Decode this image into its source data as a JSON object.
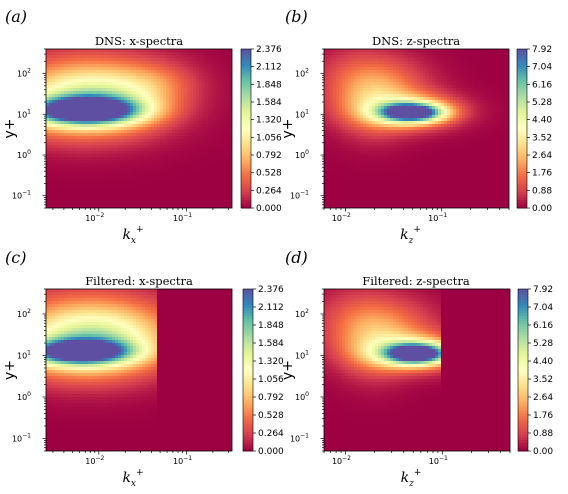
{
  "chart_data": [
    {
      "type": "heatmap",
      "panel_label": "(a)",
      "title": "DNS: x-spectra",
      "xlabel": "k_x^+",
      "xlabel_main": "k",
      "xlabel_sub": "x",
      "xlabel_sup": "+",
      "ylabel": "y+",
      "x_scale": "log",
      "y_scale": "log",
      "xlim": [
        0.0025,
        0.33
      ],
      "ylim": [
        0.05,
        400
      ],
      "x_ticks": [
        {
          "value": 0.01,
          "base": "10",
          "exp": "−2"
        },
        {
          "value": 0.1,
          "base": "10",
          "exp": "−1"
        }
      ],
      "y_ticks": [
        {
          "value": 0.1,
          "base": "10",
          "exp": "−1"
        },
        {
          "value": 1,
          "base": "10",
          "exp": "0"
        },
        {
          "value": 10,
          "base": "10",
          "exp": "1"
        },
        {
          "value": 100,
          "base": "10",
          "exp": "2"
        }
      ],
      "colorbar": {
        "min": 0,
        "max": 2.376,
        "ticks": [
          "0.000",
          "0.264",
          "0.528",
          "0.792",
          "1.056",
          "1.320",
          "1.584",
          "1.848",
          "2.112",
          "2.376"
        ]
      },
      "peak": {
        "x": 0.0065,
        "y": 12,
        "value": 2.376
      },
      "blobs": [
        {
          "x": 0.007,
          "y": 12,
          "sx": 0.42,
          "sy": 0.22,
          "value": 2.3
        },
        {
          "x": 0.006,
          "y": 18,
          "sx": 0.55,
          "sy": 0.55,
          "value": 0.95
        },
        {
          "x": 0.007,
          "y": 40,
          "sx": 0.65,
          "sy": 0.7,
          "value": 0.55
        },
        {
          "x": 0.02,
          "y": 25,
          "sx": 0.4,
          "sy": 0.5,
          "value": 0.35
        },
        {
          "x": 0.05,
          "y": 60,
          "sx": 0.3,
          "sy": 0.35,
          "value": 0.2
        }
      ]
    },
    {
      "type": "heatmap",
      "panel_label": "(b)",
      "title": "DNS: z-spectra",
      "xlabel": "k_z^+",
      "xlabel_main": "k",
      "xlabel_sub": "z",
      "xlabel_sup": "+",
      "ylabel": "y+",
      "x_scale": "log",
      "y_scale": "log",
      "xlim": [
        0.006,
        0.5
      ],
      "ylim": [
        0.05,
        400
      ],
      "x_ticks": [
        {
          "value": 0.01,
          "base": "10",
          "exp": "−2"
        },
        {
          "value": 0.1,
          "base": "10",
          "exp": "−1"
        }
      ],
      "y_ticks": [
        {
          "value": 0.1,
          "base": "10",
          "exp": "−1"
        },
        {
          "value": 1,
          "base": "10",
          "exp": "0"
        },
        {
          "value": 10,
          "base": "10",
          "exp": "1"
        },
        {
          "value": 100,
          "base": "10",
          "exp": "2"
        }
      ],
      "colorbar": {
        "min": 0,
        "max": 7.92,
        "ticks": [
          "0.00",
          "0.88",
          "1.76",
          "2.64",
          "3.52",
          "4.40",
          "5.28",
          "6.16",
          "7.04",
          "7.92"
        ]
      },
      "peak": {
        "x": 0.055,
        "y": 11,
        "value": 7.92
      },
      "blobs": [
        {
          "x": 0.05,
          "y": 11,
          "sx": 0.22,
          "sy": 0.16,
          "value": 7.6
        },
        {
          "x": 0.045,
          "y": 12,
          "sx": 0.35,
          "sy": 0.3,
          "value": 3.0
        },
        {
          "x": 0.02,
          "y": 20,
          "sx": 0.25,
          "sy": 0.6,
          "value": 1.4
        },
        {
          "x": 0.012,
          "y": 60,
          "sx": 0.3,
          "sy": 0.6,
          "value": 1.1
        },
        {
          "x": 0.035,
          "y": 50,
          "sx": 0.3,
          "sy": 0.5,
          "value": 0.9
        }
      ]
    },
    {
      "type": "heatmap",
      "panel_label": "(c)",
      "title": "Filtered: x-spectra",
      "xlabel": "k_x^+",
      "xlabel_main": "k",
      "xlabel_sub": "x",
      "xlabel_sup": "+",
      "ylabel": "y+",
      "x_scale": "log",
      "y_scale": "log",
      "xlim": [
        0.0025,
        0.33
      ],
      "ylim": [
        0.05,
        400
      ],
      "cutoff_x": 0.045,
      "x_ticks": [
        {
          "value": 0.01,
          "base": "10",
          "exp": "−2"
        },
        {
          "value": 0.1,
          "base": "10",
          "exp": "−1"
        }
      ],
      "y_ticks": [
        {
          "value": 0.1,
          "base": "10",
          "exp": "−1"
        },
        {
          "value": 1,
          "base": "10",
          "exp": "0"
        },
        {
          "value": 10,
          "base": "10",
          "exp": "1"
        },
        {
          "value": 100,
          "base": "10",
          "exp": "2"
        }
      ],
      "colorbar": {
        "min": 0,
        "max": 2.376,
        "ticks": [
          "0.000",
          "0.264",
          "0.528",
          "0.792",
          "1.056",
          "1.320",
          "1.584",
          "1.848",
          "2.112",
          "2.376"
        ]
      },
      "peak": {
        "x": 0.006,
        "y": 12,
        "value": 2.2
      },
      "blobs": [
        {
          "x": 0.006,
          "y": 12,
          "sx": 0.4,
          "sy": 0.2,
          "value": 2.0
        },
        {
          "x": 0.006,
          "y": 18,
          "sx": 0.55,
          "sy": 0.55,
          "value": 0.95
        },
        {
          "x": 0.007,
          "y": 45,
          "sx": 0.65,
          "sy": 0.7,
          "value": 0.6
        },
        {
          "x": 0.02,
          "y": 25,
          "sx": 0.45,
          "sy": 0.55,
          "value": 0.35
        }
      ]
    },
    {
      "type": "heatmap",
      "panel_label": "(d)",
      "title": "Filtered: z-spectra",
      "xlabel": "k_z^+",
      "xlabel_main": "k",
      "xlabel_sub": "z",
      "xlabel_sup": "+",
      "ylabel": "y+",
      "x_scale": "log",
      "y_scale": "log",
      "xlim": [
        0.006,
        0.5
      ],
      "ylim": [
        0.05,
        400
      ],
      "cutoff_x": 0.1,
      "x_ticks": [
        {
          "value": 0.01,
          "base": "10",
          "exp": "−2"
        },
        {
          "value": 0.1,
          "base": "10",
          "exp": "−1"
        }
      ],
      "y_ticks": [
        {
          "value": 0.1,
          "base": "10",
          "exp": "−1"
        },
        {
          "value": 1,
          "base": "10",
          "exp": "0"
        },
        {
          "value": 10,
          "base": "10",
          "exp": "1"
        },
        {
          "value": 100,
          "base": "10",
          "exp": "2"
        }
      ],
      "colorbar": {
        "min": 0,
        "max": 7.92,
        "ticks": [
          "0.00",
          "0.88",
          "1.76",
          "2.64",
          "3.52",
          "4.40",
          "5.28",
          "6.16",
          "7.04",
          "7.92"
        ]
      },
      "peak": {
        "x": 0.055,
        "y": 11,
        "value": 7.92
      },
      "blobs": [
        {
          "x": 0.055,
          "y": 11,
          "sx": 0.22,
          "sy": 0.17,
          "value": 7.5
        },
        {
          "x": 0.05,
          "y": 12,
          "sx": 0.35,
          "sy": 0.3,
          "value": 3.2
        },
        {
          "x": 0.02,
          "y": 20,
          "sx": 0.25,
          "sy": 0.6,
          "value": 1.4
        },
        {
          "x": 0.012,
          "y": 60,
          "sx": 0.3,
          "sy": 0.6,
          "value": 1.1
        },
        {
          "x": 0.04,
          "y": 50,
          "sx": 0.3,
          "sy": 0.5,
          "value": 1.0
        }
      ]
    }
  ],
  "colormap": [
    "#9e0142",
    "#d53e4f",
    "#f46d43",
    "#fdae61",
    "#fee08b",
    "#ffffbf",
    "#e6f598",
    "#abdda4",
    "#66c2a5",
    "#3288bd",
    "#5e4fa2"
  ]
}
